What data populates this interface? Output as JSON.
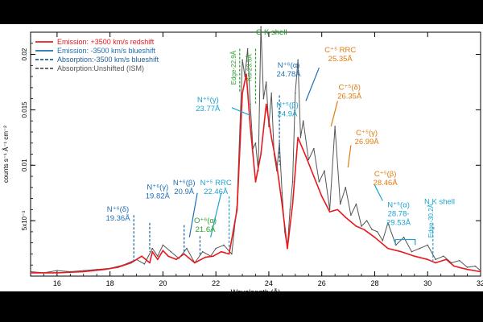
{
  "chart_data": {
    "type": "line",
    "xlabel": "Wavelength (Å)",
    "ylabel": "counts s⁻¹ Å⁻¹ cm⁻²",
    "xlim": [
      15,
      32
    ],
    "ylim": [
      0,
      0.022
    ],
    "x_ticks": [
      "16",
      "18",
      "20",
      "22",
      "24",
      "26",
      "28",
      "30",
      "32"
    ],
    "y_ticks": [
      {
        "value": 0.005,
        "label": "5x10⁻³"
      },
      {
        "value": 0.01,
        "label": "0.01"
      },
      {
        "value": 0.015,
        "label": "0.015"
      },
      {
        "value": 0.02,
        "label": "0.02"
      }
    ],
    "legend": [
      {
        "label": "Emission:   +3500 km/s redshift",
        "color": "#e8191f",
        "style": "solid"
      },
      {
        "label": "Emission:   -3500 km/s blueshift",
        "color": "#1f6fb5",
        "style": "solid"
      },
      {
        "label": "Absorption:-3500 km/s blueshift",
        "color": "#1f5f99",
        "style": "dashed"
      },
      {
        "label": "Absorption:Unshifted (ISM)",
        "color": "#555555",
        "style": "dashed"
      }
    ],
    "legend_position": "top-left",
    "series": [
      {
        "color": "#e8191f",
        "x": [
          15.0,
          16.0,
          17.0,
          17.8,
          18.3,
          18.8,
          19.2,
          19.5,
          19.6,
          19.8,
          20.0,
          20.2,
          20.5,
          20.8,
          21.2,
          21.6,
          21.9,
          22.2,
          22.5,
          22.8,
          23.0,
          23.15,
          23.3,
          23.5,
          23.7,
          23.9,
          24.1,
          24.3,
          24.5,
          24.7,
          24.9,
          25.1,
          25.4,
          25.7,
          26.0,
          26.3,
          26.6,
          26.9,
          27.3,
          27.6,
          28.0,
          28.5,
          29.0,
          29.5,
          30.0,
          30.3,
          30.7,
          31.0,
          31.5,
          32.0
        ],
        "y": [
          0.0003,
          0.0003,
          0.0004,
          0.0006,
          0.0008,
          0.0012,
          0.0018,
          0.0012,
          0.0022,
          0.0015,
          0.0023,
          0.0018,
          0.0015,
          0.002,
          0.0012,
          0.0017,
          0.0018,
          0.0022,
          0.002,
          0.006,
          0.0165,
          0.0182,
          0.0135,
          0.0085,
          0.011,
          0.0155,
          0.0125,
          0.01,
          0.0065,
          0.0025,
          0.0065,
          0.0125,
          0.0108,
          0.009,
          0.0072,
          0.0058,
          0.006,
          0.0053,
          0.0045,
          0.0042,
          0.0035,
          0.0025,
          0.0022,
          0.0018,
          0.0015,
          0.0012,
          0.0015,
          0.0009,
          0.0006,
          0.0004
        ]
      },
      {
        "color": "#555555",
        "x": [
          15.0,
          15.5,
          16.0,
          16.5,
          17.0,
          17.5,
          18.0,
          18.5,
          19.0,
          19.3,
          19.6,
          19.8,
          20.0,
          20.3,
          20.6,
          20.9,
          21.2,
          21.5,
          21.8,
          22.0,
          22.3,
          22.6,
          22.8,
          23.0,
          23.1,
          23.2,
          23.3,
          23.4,
          23.5,
          23.6,
          23.7,
          23.8,
          23.9,
          24.0,
          24.1,
          24.2,
          24.3,
          24.4,
          24.5,
          24.6,
          24.7,
          24.8,
          24.9,
          25.0,
          25.1,
          25.2,
          25.3,
          25.5,
          25.7,
          25.9,
          26.1,
          26.3,
          26.5,
          26.7,
          26.9,
          27.1,
          27.3,
          27.5,
          27.7,
          27.9,
          28.1,
          28.3,
          28.5,
          28.8,
          29.1,
          29.4,
          29.7,
          30.0,
          30.3,
          30.6,
          30.9,
          31.2,
          31.5,
          31.8,
          32.0
        ],
        "y": [
          0.0004,
          0.0003,
          0.0005,
          0.0004,
          0.0005,
          0.0006,
          0.0007,
          0.001,
          0.0015,
          0.0011,
          0.0025,
          0.0018,
          0.0028,
          0.0022,
          0.0016,
          0.0025,
          0.0012,
          0.0022,
          0.0018,
          0.0025,
          0.0028,
          0.002,
          0.0065,
          0.0195,
          0.018,
          0.0205,
          0.0155,
          0.0115,
          0.012,
          0.0095,
          0.0225,
          0.016,
          0.0175,
          0.0135,
          0.0165,
          0.011,
          0.0095,
          0.012,
          0.0075,
          0.004,
          0.0025,
          0.006,
          0.0085,
          0.0165,
          0.0195,
          0.0125,
          0.014,
          0.0105,
          0.0115,
          0.0085,
          0.0095,
          0.006,
          0.0135,
          0.0065,
          0.008,
          0.0055,
          0.0065,
          0.0045,
          0.005,
          0.0042,
          0.004,
          0.0032,
          0.0048,
          0.0028,
          0.0035,
          0.0022,
          0.0025,
          0.0028,
          0.0015,
          0.0018,
          0.0012,
          0.0014,
          0.0008,
          0.0009,
          0.0005
        ]
      }
    ],
    "annotations": [
      {
        "lines": [
          "O K shell"
        ],
        "x": 24.1,
        "y": 0.0218,
        "color": "#1e8a1e"
      },
      {
        "lines": [
          "Edge-22.9Å"
        ],
        "x": 22.75,
        "y": 0.0188,
        "color": "#2aa02a",
        "rotate": -90
      },
      {
        "lines": [
          "Kα-23.5Å"
        ],
        "x": 23.35,
        "y": 0.0188,
        "color": "#2aa02a",
        "rotate": -90
      },
      {
        "lines": [
          "N⁺⁶(α)",
          "24.78Å"
        ],
        "x": 24.75,
        "y": 0.0188,
        "color": "#1f6fb5"
      },
      {
        "lines": [
          "N⁺⁵(γ)",
          "23.77Å"
        ],
        "x": 21.7,
        "y": 0.0157,
        "color": "#1aa3d0"
      },
      {
        "lines": [
          "N⁺⁵(β)",
          "24.9Å"
        ],
        "x": 24.7,
        "y": 0.0152,
        "color": "#1aa3d0"
      },
      {
        "lines": [
          "C⁺⁵ RRC",
          "25.35Å"
        ],
        "x": 26.7,
        "y": 0.0202,
        "color": "#e07b10"
      },
      {
        "lines": [
          "C⁺⁵(δ)",
          "26.35Å"
        ],
        "x": 27.05,
        "y": 0.0168,
        "color": "#e07b10"
      },
      {
        "lines": [
          "C⁺⁵(γ)",
          "26.99Å"
        ],
        "x": 27.7,
        "y": 0.0127,
        "color": "#e07b10"
      },
      {
        "lines": [
          "C⁺⁵(β)",
          "28.46Å"
        ],
        "x": 28.4,
        "y": 0.009,
        "color": "#e07b10"
      },
      {
        "lines": [
          "N⁺⁵(α)",
          "28.78-",
          "29.53Å"
        ],
        "x": 28.9,
        "y": 0.0062,
        "color": "#1aa3d0"
      },
      {
        "lines": [
          "N K shell"
        ],
        "x": 30.45,
        "y": 0.0065,
        "color": "#1aa3d0"
      },
      {
        "lines": [
          "Edge-30.2Å"
        ],
        "x": 30.2,
        "y": 0.005,
        "color": "#1aa3d0",
        "rotate": -90
      },
      {
        "lines": [
          "N⁺⁵ RRC",
          "22.46Å"
        ],
        "x": 22.0,
        "y": 0.0082,
        "color": "#1aa3d0"
      },
      {
        "lines": [
          "N⁺⁶(β)",
          "20.9Å"
        ],
        "x": 20.8,
        "y": 0.0082,
        "color": "#1f6fb5"
      },
      {
        "lines": [
          "N⁺⁶(γ)",
          "19.82Å"
        ],
        "x": 19.8,
        "y": 0.0078,
        "color": "#1f6fb5"
      },
      {
        "lines": [
          "N⁺⁶(δ)",
          "19.36Å"
        ],
        "x": 18.3,
        "y": 0.0058,
        "color": "#1f6fb5"
      },
      {
        "lines": [
          "O⁺⁶(α)",
          "21.6Å"
        ],
        "x": 21.6,
        "y": 0.0048,
        "color": "#2aa02a"
      }
    ]
  }
}
